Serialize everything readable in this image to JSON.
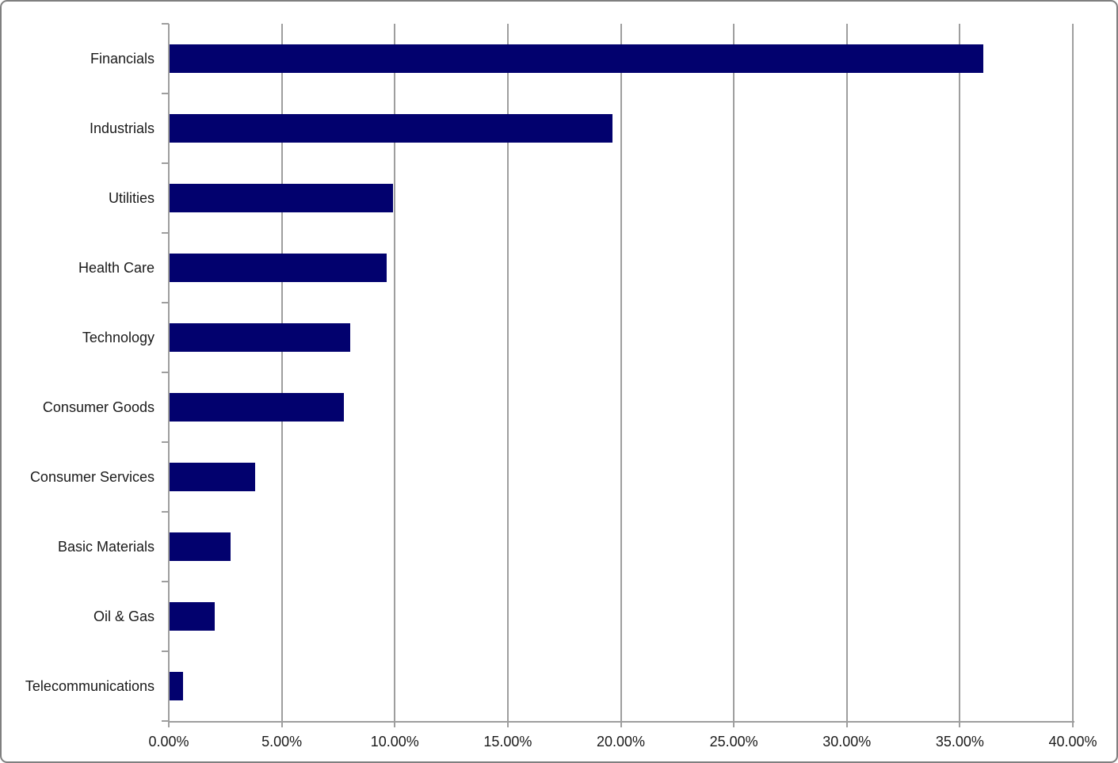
{
  "chart_data": {
    "type": "bar",
    "orientation": "horizontal",
    "title": "",
    "xlabel": "",
    "ylabel": "",
    "unit": "%",
    "categories": [
      "Financials",
      "Industrials",
      "Utilities",
      "Health Care",
      "Technology",
      "Consumer Goods",
      "Consumer Services",
      "Basic Materials",
      "Oil & Gas",
      "Telecommunications"
    ],
    "values": [
      36.0,
      19.6,
      9.9,
      9.6,
      8.0,
      7.7,
      3.8,
      2.7,
      2.0,
      0.6
    ],
    "xlim": [
      0,
      40
    ],
    "x_tick_step": 5,
    "x_tick_labels": [
      "0.00%",
      "5.00%",
      "10.00%",
      "15.00%",
      "20.00%",
      "25.00%",
      "30.00%",
      "35.00%",
      "40.00%"
    ],
    "grid": true,
    "legend": false,
    "colors": {
      "bar": "#02016e",
      "gridline": "#9e9e9e",
      "axis": "#9e9e9e",
      "text": "#1a1a1a",
      "background": "#ffffff",
      "frame_border": "#7f7f7f"
    }
  }
}
